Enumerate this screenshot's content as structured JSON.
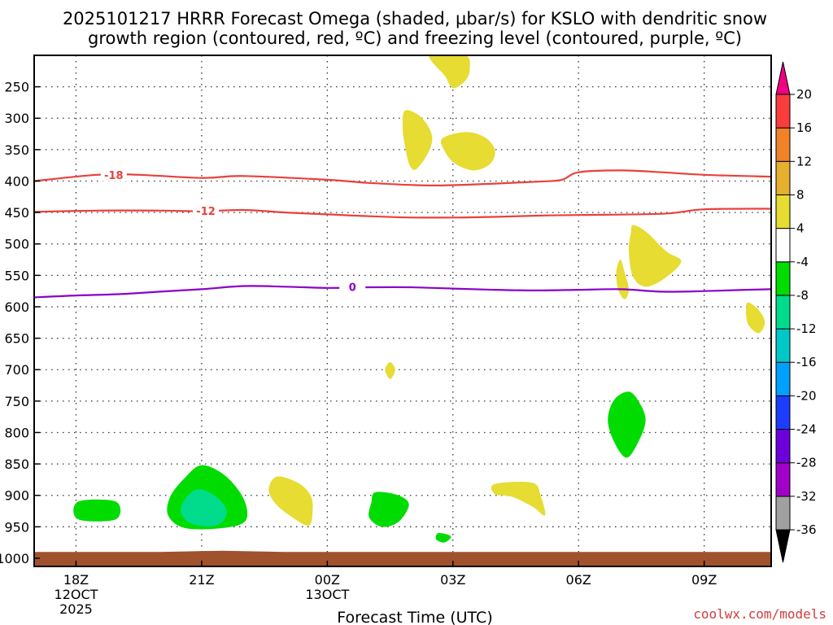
{
  "chart_data": {
    "type": "heatmap",
    "title_line1": "2025101217 HRRR Forecast Omega (shaded, µbar/s) for KSLO with dendritic snow",
    "title_line2": "growth region (contoured, red, ºC) and freezing level (contoured, purple, ºC)",
    "xlabel": "Forecast Time (UTC)",
    "credit": "coolwx.com/models",
    "x_ticks": [
      {
        "hour": 1,
        "label": "18Z",
        "sub1": "12OCT",
        "sub2": "2025"
      },
      {
        "hour": 4,
        "label": "21Z",
        "sub1": "",
        "sub2": ""
      },
      {
        "hour": 7,
        "label": "00Z",
        "sub1": "13OCT",
        "sub2": ""
      },
      {
        "hour": 10,
        "label": "03Z",
        "sub1": "",
        "sub2": ""
      },
      {
        "hour": 13,
        "label": "06Z",
        "sub1": "",
        "sub2": ""
      },
      {
        "hour": 16,
        "label": "09Z",
        "sub1": "",
        "sub2": ""
      }
    ],
    "x_range_hours": [
      0.0,
      17.6
    ],
    "y_ticks_hPa": [
      250,
      300,
      350,
      400,
      450,
      500,
      550,
      600,
      650,
      700,
      750,
      800,
      850,
      900,
      950,
      1000
    ],
    "y_range_hPa": [
      200,
      1013
    ],
    "colorbar": {
      "levels": [
        -36,
        -32,
        -28,
        -24,
        -20,
        -16,
        -12,
        -8,
        -4,
        4,
        8,
        12,
        16,
        20
      ],
      "colors_low_to_high": [
        "#a0a0a0",
        "#a000c8",
        "#6e00dc",
        "#1e3cff",
        "#00a0ff",
        "#00c8c8",
        "#00dc8c",
        "#00dc00",
        "#ffffff",
        "#e6dc32",
        "#e6af2d",
        "#f08228",
        "#fa3c3c",
        "#f00082"
      ],
      "below_color": "#000000",
      "above_color": "#f00082"
    },
    "contours": [
      {
        "label": "-18",
        "color": "#e8413c",
        "label_at": [
          1.9,
          390
        ],
        "points": [
          [
            0,
            400
          ],
          [
            1.5,
            390
          ],
          [
            2.5,
            390
          ],
          [
            4,
            395
          ],
          [
            5,
            392
          ],
          [
            7,
            398
          ],
          [
            8,
            403
          ],
          [
            9.5,
            407
          ],
          [
            11,
            404
          ],
          [
            12,
            401
          ],
          [
            12.6,
            398
          ],
          [
            13,
            386
          ],
          [
            14,
            383
          ],
          [
            15,
            386
          ],
          [
            16,
            390
          ],
          [
            17.6,
            393
          ]
        ]
      },
      {
        "label": "-12",
        "color": "#e8413c",
        "label_at": [
          4.1,
          447
        ],
        "points": [
          [
            0,
            449
          ],
          [
            1.5,
            447
          ],
          [
            3,
            447
          ],
          [
            4,
            448
          ],
          [
            5,
            446
          ],
          [
            6,
            450
          ],
          [
            7,
            453
          ],
          [
            8,
            456
          ],
          [
            9,
            458
          ],
          [
            10,
            458
          ],
          [
            11,
            457
          ],
          [
            12,
            455
          ],
          [
            13,
            454
          ],
          [
            15,
            452
          ],
          [
            16,
            445
          ],
          [
            17.6,
            444
          ]
        ]
      },
      {
        "label": "0",
        "color": "#8c00c8",
        "label_at": [
          7.6,
          568
        ],
        "points": [
          [
            0,
            585
          ],
          [
            1,
            582
          ],
          [
            2,
            580
          ],
          [
            3,
            576
          ],
          [
            4,
            572
          ],
          [
            5,
            567
          ],
          [
            6,
            568
          ],
          [
            7,
            570
          ],
          [
            8,
            569
          ],
          [
            9,
            569
          ],
          [
            10,
            571
          ],
          [
            11,
            573
          ],
          [
            12,
            574
          ],
          [
            13,
            573
          ],
          [
            14,
            572
          ],
          [
            15,
            576
          ],
          [
            16,
            575
          ],
          [
            17,
            573
          ],
          [
            17.6,
            572
          ]
        ]
      }
    ],
    "shaded_regions": [
      {
        "value": 6,
        "points": [
          [
            9.5,
            200
          ],
          [
            10.3,
            200
          ],
          [
            10.4,
            222
          ],
          [
            10.3,
            240
          ],
          [
            10.0,
            252
          ],
          [
            9.8,
            232
          ],
          [
            9.5,
            210
          ]
        ]
      },
      {
        "value": 6,
        "points": [
          [
            8.85,
            288
          ],
          [
            9.2,
            296
          ],
          [
            9.45,
            318
          ],
          [
            9.5,
            338
          ],
          [
            9.35,
            362
          ],
          [
            9.1,
            382
          ],
          [
            8.95,
            372
          ],
          [
            8.85,
            342
          ],
          [
            8.8,
            316
          ]
        ]
      },
      {
        "value": 6,
        "points": [
          [
            9.75,
            332
          ],
          [
            10.3,
            322
          ],
          [
            10.75,
            330
          ],
          [
            11.0,
            350
          ],
          [
            10.9,
            372
          ],
          [
            10.5,
            383
          ],
          [
            10.05,
            372
          ],
          [
            9.8,
            352
          ]
        ]
      },
      {
        "value": 6,
        "points": [
          [
            14.3,
            470
          ],
          [
            14.6,
            480
          ],
          [
            15.1,
            512
          ],
          [
            15.45,
            528
          ],
          [
            15.05,
            555
          ],
          [
            14.6,
            568
          ],
          [
            14.3,
            552
          ],
          [
            14.2,
            512
          ],
          [
            14.25,
            482
          ]
        ]
      },
      {
        "value": 6,
        "points": [
          [
            14.0,
            525
          ],
          [
            14.1,
            545
          ],
          [
            14.2,
            573
          ],
          [
            14.1,
            588
          ],
          [
            13.95,
            573
          ],
          [
            13.9,
            545
          ]
        ]
      },
      {
        "value": 6,
        "points": [
          [
            17.05,
            593
          ],
          [
            17.3,
            605
          ],
          [
            17.45,
            625
          ],
          [
            17.3,
            642
          ],
          [
            17.05,
            628
          ],
          [
            17.0,
            605
          ]
        ]
      },
      {
        "value": 6,
        "points": [
          [
            8.5,
            688
          ],
          [
            8.62,
            700
          ],
          [
            8.5,
            715
          ],
          [
            8.38,
            700
          ]
        ]
      },
      {
        "value": 6,
        "points": [
          [
            5.8,
            870
          ],
          [
            6.3,
            880
          ],
          [
            6.6,
            900
          ],
          [
            6.65,
            925
          ],
          [
            6.55,
            948
          ],
          [
            6.1,
            932
          ],
          [
            5.75,
            912
          ],
          [
            5.6,
            890
          ]
        ]
      },
      {
        "value": 6,
        "points": [
          [
            11.0,
            882
          ],
          [
            11.9,
            880
          ],
          [
            12.1,
            902
          ],
          [
            12.2,
            932
          ],
          [
            11.9,
            918
          ],
          [
            11.4,
            902
          ],
          [
            11.0,
            898
          ]
        ]
      },
      {
        "value": -6,
        "points": [
          [
            1.05,
            910
          ],
          [
            1.95,
            910
          ],
          [
            1.95,
            938
          ],
          [
            1.05,
            938
          ]
        ]
      },
      {
        "value": -6,
        "points": [
          [
            4.0,
            852
          ],
          [
            4.55,
            868
          ],
          [
            5.0,
            905
          ],
          [
            5.05,
            940
          ],
          [
            4.5,
            952
          ],
          [
            3.6,
            952
          ],
          [
            3.2,
            932
          ],
          [
            3.25,
            902
          ],
          [
            3.6,
            872
          ]
        ]
      },
      {
        "value": -10,
        "points": [
          [
            3.95,
            890
          ],
          [
            4.4,
            905
          ],
          [
            4.6,
            928
          ],
          [
            4.35,
            948
          ],
          [
            3.75,
            945
          ],
          [
            3.5,
            925
          ],
          [
            3.65,
            902
          ]
        ]
      },
      {
        "value": -6,
        "points": [
          [
            8.15,
            895
          ],
          [
            8.7,
            900
          ],
          [
            8.95,
            915
          ],
          [
            8.7,
            942
          ],
          [
            8.3,
            950
          ],
          [
            8.0,
            935
          ],
          [
            8.05,
            912
          ]
        ]
      },
      {
        "value": -6,
        "points": [
          [
            14.2,
            735
          ],
          [
            14.45,
            752
          ],
          [
            14.6,
            780
          ],
          [
            14.45,
            812
          ],
          [
            14.15,
            840
          ],
          [
            13.85,
            815
          ],
          [
            13.7,
            780
          ],
          [
            13.85,
            748
          ]
        ]
      },
      {
        "value": -6,
        "points": [
          [
            9.65,
            960
          ],
          [
            9.95,
            965
          ],
          [
            9.8,
            975
          ],
          [
            9.6,
            970
          ]
        ]
      }
    ],
    "surface_terrain": {
      "color": "#a0522d",
      "points": [
        [
          0,
          1013
        ],
        [
          0,
          990
        ],
        [
          1.5,
          990
        ],
        [
          3,
          990
        ],
        [
          4.5,
          988
        ],
        [
          6,
          990
        ],
        [
          9,
          990
        ],
        [
          11,
          990
        ],
        [
          14,
          990
        ],
        [
          16,
          990
        ],
        [
          17.6,
          990
        ],
        [
          17.6,
          1013
        ]
      ]
    }
  }
}
